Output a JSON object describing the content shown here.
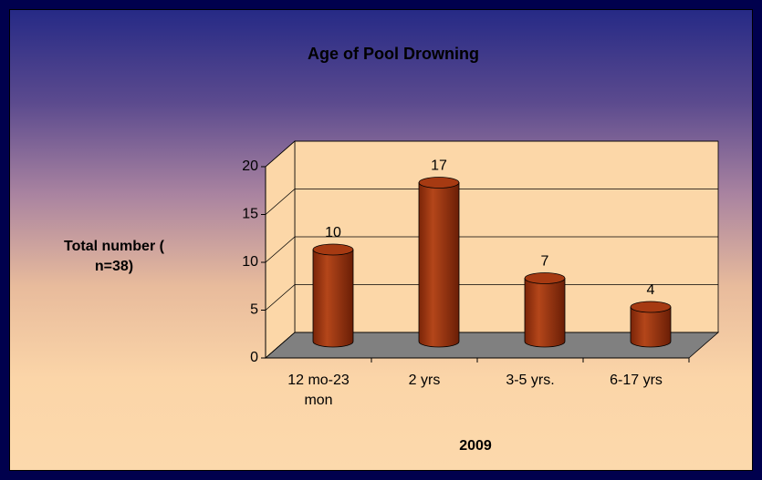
{
  "chart_data": {
    "type": "bar",
    "title": "Age of Pool Drowning",
    "y_axis_label": "Total number ( n=38)",
    "x_axis_label": "2009",
    "categories": [
      "12 mo-23 mon",
      "2 yrs",
      "3-5 yrs.",
      "6-17 yrs"
    ],
    "values": [
      10,
      17,
      7,
      4
    ],
    "color": "#a63a12",
    "ylim": [
      0,
      20
    ],
    "yticks": [
      0,
      5,
      10,
      15,
      20
    ],
    "grid": true
  }
}
